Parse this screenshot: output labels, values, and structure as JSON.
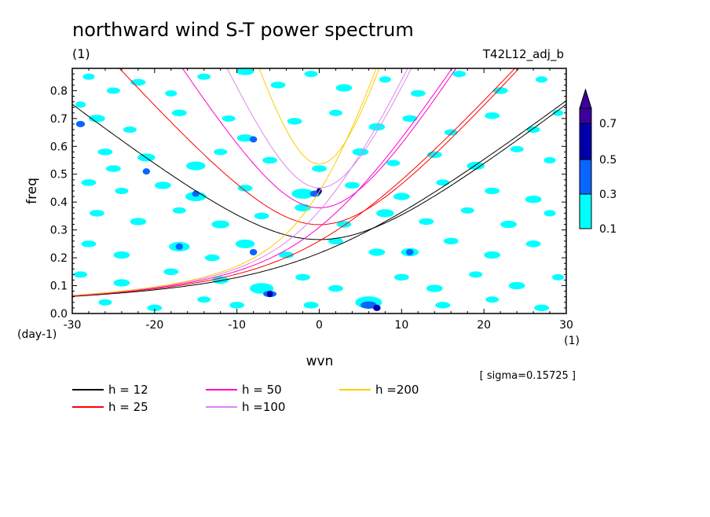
{
  "chart_data": {
    "type": "heatmap",
    "title": "northward wind S-T power spectrum",
    "subtitle_left": "(1)",
    "subtitle_right": "T42L12_adj_b",
    "xlabel": "wvn",
    "ylabel": "freq",
    "x_unit": "(1)",
    "y_unit": "(day-1)",
    "xlim": [
      -30,
      30
    ],
    "ylim": [
      0,
      0.88
    ],
    "x_ticks": [
      -30,
      -20,
      -10,
      0,
      10,
      20,
      30
    ],
    "x_tick_labels": [
      "-30",
      "-20",
      "-10",
      "0",
      "10",
      "20",
      "30"
    ],
    "y_ticks": [
      0,
      0.1,
      0.2,
      0.3,
      0.4,
      0.5,
      0.6,
      0.7,
      0.8
    ],
    "y_tick_labels": [
      "0.0",
      "0.1",
      "0.2",
      "0.3",
      "0.4",
      "0.5",
      "0.6",
      "0.7",
      "0.8"
    ],
    "sigma_note": "[ sigma=0.15725 ]",
    "colorbar": {
      "levels": [
        "0.1",
        "0.3",
        "0.5",
        "0.7"
      ],
      "colors": [
        "#00ffff",
        "#0a64ff",
        "#0000aa",
        "#3c009c"
      ]
    },
    "contour_levels": [
      0.1,
      0.3,
      0.5,
      0.7
    ],
    "contour_colors": [
      "#00ffff",
      "#0a64ff",
      "#0000aa"
    ],
    "patches": [
      {
        "x": -28,
        "y": 0.85,
        "r": 0.8,
        "l": 0
      },
      {
        "x": -25,
        "y": 0.8,
        "r": 0.9,
        "l": 0
      },
      {
        "x": -29,
        "y": 0.75,
        "r": 0.7,
        "l": 0
      },
      {
        "x": -22,
        "y": 0.83,
        "r": 1.0,
        "l": 0
      },
      {
        "x": -18,
        "y": 0.79,
        "r": 0.8,
        "l": 0
      },
      {
        "x": -14,
        "y": 0.85,
        "r": 0.9,
        "l": 0
      },
      {
        "x": -9,
        "y": 0.87,
        "r": 1.2,
        "l": 0
      },
      {
        "x": -5,
        "y": 0.82,
        "r": 1.0,
        "l": 0
      },
      {
        "x": -1,
        "y": 0.86,
        "r": 0.9,
        "l": 0
      },
      {
        "x": 3,
        "y": 0.81,
        "r": 1.1,
        "l": 0
      },
      {
        "x": 8,
        "y": 0.84,
        "r": 0.8,
        "l": 0
      },
      {
        "x": 12,
        "y": 0.79,
        "r": 1.0,
        "l": 0
      },
      {
        "x": 17,
        "y": 0.86,
        "r": 0.9,
        "l": 0
      },
      {
        "x": 22,
        "y": 0.8,
        "r": 1.0,
        "l": 0
      },
      {
        "x": 27,
        "y": 0.84,
        "r": 0.8,
        "l": 0
      },
      {
        "x": -27,
        "y": 0.7,
        "r": 1.1,
        "l": 0
      },
      {
        "x": -29,
        "y": 0.68,
        "r": 0.6,
        "l": 1
      },
      {
        "x": -23,
        "y": 0.66,
        "r": 0.9,
        "l": 0
      },
      {
        "x": -17,
        "y": 0.72,
        "r": 1.0,
        "l": 0
      },
      {
        "x": -11,
        "y": 0.7,
        "r": 0.9,
        "l": 0
      },
      {
        "x": -9,
        "y": 0.63,
        "r": 1.1,
        "l": 0
      },
      {
        "x": -8,
        "y": 0.625,
        "r": 0.5,
        "l": 1
      },
      {
        "x": -3,
        "y": 0.69,
        "r": 1.0,
        "l": 0
      },
      {
        "x": 2,
        "y": 0.72,
        "r": 0.9,
        "l": 0
      },
      {
        "x": 7,
        "y": 0.67,
        "r": 1.1,
        "l": 0
      },
      {
        "x": 11,
        "y": 0.7,
        "r": 1.0,
        "l": 0
      },
      {
        "x": 16,
        "y": 0.65,
        "r": 0.9,
        "l": 0
      },
      {
        "x": 21,
        "y": 0.71,
        "r": 1.0,
        "l": 0
      },
      {
        "x": 26,
        "y": 0.66,
        "r": 0.9,
        "l": 0
      },
      {
        "x": 29,
        "y": 0.72,
        "r": 0.7,
        "l": 0
      },
      {
        "x": -26,
        "y": 0.58,
        "r": 1.0,
        "l": 0
      },
      {
        "x": -21,
        "y": 0.56,
        "r": 1.2,
        "l": 0
      },
      {
        "x": -25,
        "y": 0.52,
        "r": 1.0,
        "l": 0
      },
      {
        "x": -21,
        "y": 0.51,
        "r": 0.5,
        "l": 1
      },
      {
        "x": -15,
        "y": 0.53,
        "r": 1.3,
        "l": 0
      },
      {
        "x": -12,
        "y": 0.58,
        "r": 0.9,
        "l": 0
      },
      {
        "x": -6,
        "y": 0.55,
        "r": 1.0,
        "l": 0
      },
      {
        "x": 0,
        "y": 0.52,
        "r": 1.0,
        "l": 0
      },
      {
        "x": 5,
        "y": 0.58,
        "r": 1.1,
        "l": 0
      },
      {
        "x": 9,
        "y": 0.54,
        "r": 0.9,
        "l": 0
      },
      {
        "x": 14,
        "y": 0.57,
        "r": 1.0,
        "l": 0
      },
      {
        "x": 19,
        "y": 0.53,
        "r": 1.2,
        "l": 0
      },
      {
        "x": 24,
        "y": 0.59,
        "r": 0.9,
        "l": 0
      },
      {
        "x": 28,
        "y": 0.55,
        "r": 0.8,
        "l": 0
      },
      {
        "x": -28,
        "y": 0.47,
        "r": 1.0,
        "l": 0
      },
      {
        "x": -24,
        "y": 0.44,
        "r": 0.9,
        "l": 0
      },
      {
        "x": -19,
        "y": 0.46,
        "r": 1.1,
        "l": 0
      },
      {
        "x": -15,
        "y": 0.42,
        "r": 1.4,
        "l": 0
      },
      {
        "x": -15,
        "y": 0.43,
        "r": 0.5,
        "l": 1
      },
      {
        "x": -9,
        "y": 0.45,
        "r": 1.0,
        "l": 0
      },
      {
        "x": -2,
        "y": 0.43,
        "r": 1.5,
        "l": 0
      },
      {
        "x": -0.5,
        "y": 0.43,
        "r": 0.7,
        "l": 1
      },
      {
        "x": 0,
        "y": 0.44,
        "r": 0.35,
        "l": 2
      },
      {
        "x": 4,
        "y": 0.46,
        "r": 1.0,
        "l": 0
      },
      {
        "x": 10,
        "y": 0.42,
        "r": 1.1,
        "l": 0
      },
      {
        "x": 15,
        "y": 0.47,
        "r": 0.9,
        "l": 0
      },
      {
        "x": 21,
        "y": 0.44,
        "r": 1.0,
        "l": 0
      },
      {
        "x": 26,
        "y": 0.41,
        "r": 1.1,
        "l": 0
      },
      {
        "x": -27,
        "y": 0.36,
        "r": 1.0,
        "l": 0
      },
      {
        "x": -22,
        "y": 0.33,
        "r": 1.1,
        "l": 0
      },
      {
        "x": -17,
        "y": 0.37,
        "r": 0.9,
        "l": 0
      },
      {
        "x": -12,
        "y": 0.32,
        "r": 1.2,
        "l": 0
      },
      {
        "x": -7,
        "y": 0.35,
        "r": 1.0,
        "l": 0
      },
      {
        "x": -2,
        "y": 0.38,
        "r": 1.1,
        "l": 0
      },
      {
        "x": 3,
        "y": 0.32,
        "r": 1.0,
        "l": 0
      },
      {
        "x": 8,
        "y": 0.36,
        "r": 1.2,
        "l": 0
      },
      {
        "x": 13,
        "y": 0.33,
        "r": 1.0,
        "l": 0
      },
      {
        "x": 18,
        "y": 0.37,
        "r": 0.9,
        "l": 0
      },
      {
        "x": 23,
        "y": 0.32,
        "r": 1.1,
        "l": 0
      },
      {
        "x": 28,
        "y": 0.36,
        "r": 0.8,
        "l": 0
      },
      {
        "x": -28,
        "y": 0.25,
        "r": 1.0,
        "l": 0
      },
      {
        "x": -24,
        "y": 0.21,
        "r": 1.1,
        "l": 0
      },
      {
        "x": -17,
        "y": 0.24,
        "r": 1.4,
        "l": 0
      },
      {
        "x": -17,
        "y": 0.24,
        "r": 0.5,
        "l": 1
      },
      {
        "x": -13,
        "y": 0.2,
        "r": 1.0,
        "l": 0
      },
      {
        "x": -9,
        "y": 0.25,
        "r": 1.3,
        "l": 0
      },
      {
        "x": -8,
        "y": 0.22,
        "r": 0.5,
        "l": 1
      },
      {
        "x": -4,
        "y": 0.21,
        "r": 1.0,
        "l": 0
      },
      {
        "x": 2,
        "y": 0.26,
        "r": 1.0,
        "l": 0
      },
      {
        "x": 7,
        "y": 0.22,
        "r": 1.1,
        "l": 0
      },
      {
        "x": 11,
        "y": 0.22,
        "r": 1.2,
        "l": 0
      },
      {
        "x": 11,
        "y": 0.22,
        "r": 0.5,
        "l": 1
      },
      {
        "x": 16,
        "y": 0.26,
        "r": 1.0,
        "l": 0
      },
      {
        "x": 21,
        "y": 0.21,
        "r": 1.1,
        "l": 0
      },
      {
        "x": 26,
        "y": 0.25,
        "r": 1.0,
        "l": 0
      },
      {
        "x": -29,
        "y": 0.14,
        "r": 0.9,
        "l": 0
      },
      {
        "x": -24,
        "y": 0.11,
        "r": 1.1,
        "l": 0
      },
      {
        "x": -18,
        "y": 0.15,
        "r": 1.0,
        "l": 0
      },
      {
        "x": -12,
        "y": 0.12,
        "r": 1.1,
        "l": 0
      },
      {
        "x": -7,
        "y": 0.09,
        "r": 1.6,
        "l": 0
      },
      {
        "x": -6,
        "y": 0.07,
        "r": 0.9,
        "l": 1
      },
      {
        "x": -6,
        "y": 0.07,
        "r": 0.4,
        "l": 2
      },
      {
        "x": -2,
        "y": 0.13,
        "r": 1.0,
        "l": 0
      },
      {
        "x": 2,
        "y": 0.09,
        "r": 1.0,
        "l": 0
      },
      {
        "x": 6,
        "y": 0.04,
        "r": 1.8,
        "l": 0
      },
      {
        "x": 6,
        "y": 0.03,
        "r": 1.1,
        "l": 1
      },
      {
        "x": 7,
        "y": 0.02,
        "r": 0.5,
        "l": 2
      },
      {
        "x": 10,
        "y": 0.13,
        "r": 1.0,
        "l": 0
      },
      {
        "x": 14,
        "y": 0.09,
        "r": 1.1,
        "l": 0
      },
      {
        "x": 19,
        "y": 0.14,
        "r": 0.9,
        "l": 0
      },
      {
        "x": 24,
        "y": 0.1,
        "r": 1.1,
        "l": 0
      },
      {
        "x": 29,
        "y": 0.13,
        "r": 0.8,
        "l": 0
      },
      {
        "x": -26,
        "y": 0.04,
        "r": 0.9,
        "l": 0
      },
      {
        "x": -20,
        "y": 0.02,
        "r": 1.0,
        "l": 0
      },
      {
        "x": -14,
        "y": 0.05,
        "r": 0.9,
        "l": 0
      },
      {
        "x": -10,
        "y": 0.03,
        "r": 1.0,
        "l": 0
      },
      {
        "x": -1,
        "y": 0.03,
        "r": 1.0,
        "l": 0
      },
      {
        "x": 15,
        "y": 0.03,
        "r": 1.0,
        "l": 0
      },
      {
        "x": 21,
        "y": 0.05,
        "r": 0.9,
        "l": 0
      },
      {
        "x": 27,
        "y": 0.02,
        "r": 1.0,
        "l": 0
      }
    ],
    "curves": [
      {
        "h": 12,
        "label": "h = 12",
        "color": "#000000"
      },
      {
        "h": 25,
        "label": "h = 25",
        "color": "#ff0000"
      },
      {
        "h": 50,
        "label": "h = 50",
        "color": "#ff00cc"
      },
      {
        "h": 100,
        "label": "h =100",
        "color": "#dd88ee"
      },
      {
        "h": 200,
        "label": "h =200",
        "color": "#ffcc00"
      }
    ]
  }
}
